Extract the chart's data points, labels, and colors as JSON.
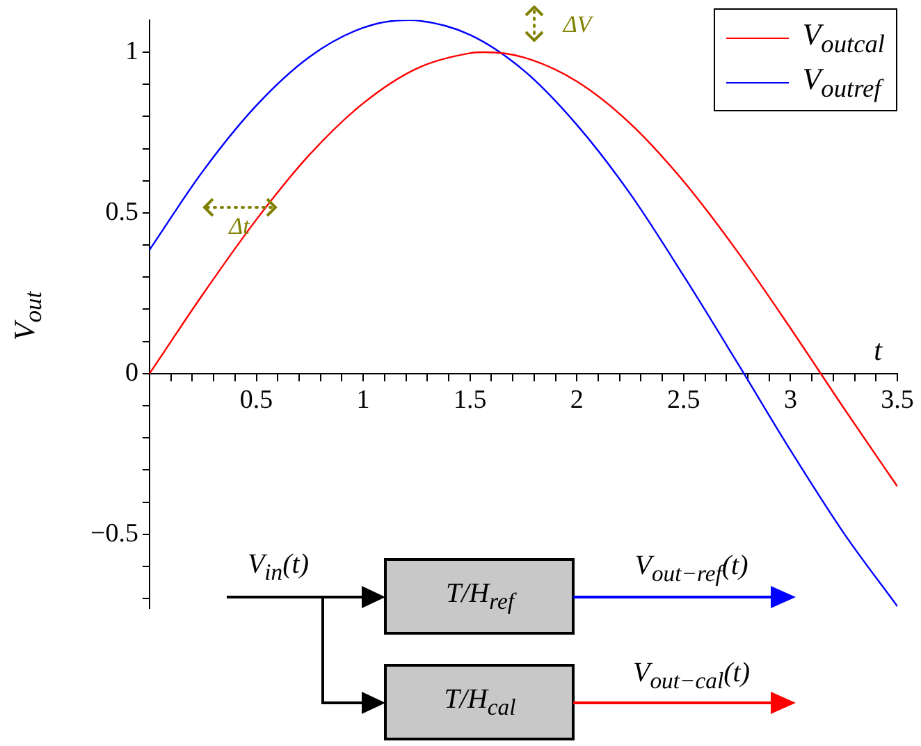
{
  "chart_data": {
    "type": "line",
    "xlabel": "t",
    "ylabel": "V$_{out}$",
    "x": [
      0,
      0.25,
      0.5,
      0.75,
      1,
      1.25,
      1.5,
      1.57,
      1.75,
      2,
      2.25,
      2.5,
      2.75,
      3,
      3.25,
      3.5
    ],
    "series": [
      {
        "name": "V$_{out}$$_{cal}$",
        "color": "#ff0000",
        "values": [
          0,
          0.247,
          0.479,
          0.682,
          0.841,
          0.949,
          0.997,
          1.0,
          0.984,
          0.909,
          0.778,
          0.598,
          0.381,
          0.141,
          -0.108,
          -0.351
        ]
      },
      {
        "name": "V$_{out}$$_{ref}$",
        "color": "#0000ff",
        "x": [
          0,
          0.25,
          0.5,
          0.75,
          1,
          1.21,
          1.25,
          1.5,
          1.75,
          2,
          2.25,
          2.5,
          2.75,
          3,
          3.25,
          3.5
        ],
        "values": [
          0.385,
          0.63,
          0.834,
          0.986,
          1.076,
          1.1,
          1.099,
          1.054,
          0.944,
          0.774,
          0.559,
          0.304,
          0.035,
          -0.239,
          -0.497,
          -0.724
        ]
      }
    ],
    "xlim": [
      0,
      3.5
    ],
    "ylim": [
      -0.73,
      1.1
    ],
    "xticks": [
      {
        "value": 0.1,
        "label": null
      },
      {
        "value": 0.2,
        "label": null
      },
      {
        "value": 0.3,
        "label": null
      },
      {
        "value": 0.4,
        "label": null
      },
      0.5,
      {
        "value": 0.6,
        "label": null
      },
      {
        "value": 0.7,
        "label": null
      },
      {
        "value": 0.8,
        "label": null
      },
      {
        "value": 0.9,
        "label": null
      },
      1,
      {
        "value": 1.1,
        "label": null
      },
      {
        "value": 1.2,
        "label": null
      },
      {
        "value": 1.3,
        "label": null
      },
      {
        "value": 1.4,
        "label": null
      },
      1.5,
      {
        "value": 1.6,
        "label": null
      },
      {
        "value": 1.7,
        "label": null
      },
      {
        "value": 1.8,
        "label": null
      },
      {
        "value": 1.9,
        "label": null
      },
      2,
      {
        "value": 2.1,
        "label": null
      },
      {
        "value": 2.2,
        "label": null
      },
      {
        "value": 2.3,
        "label": null
      },
      {
        "value": 2.4,
        "label": null
      },
      2.5,
      {
        "value": 2.6,
        "label": null
      },
      {
        "value": 2.7,
        "label": null
      },
      {
        "value": 2.8,
        "label": null
      },
      {
        "value": 2.9,
        "label": null
      },
      3,
      {
        "value": 3.1,
        "label": null
      },
      {
        "value": 3.2,
        "label": null
      },
      {
        "value": 3.3,
        "label": null
      },
      {
        "value": 3.4,
        "label": null
      },
      3.5
    ],
    "yticks": [
      {
        "value": -0.7,
        "label": null
      },
      {
        "value": -0.6,
        "label": null
      },
      -0.5,
      {
        "value": -0.4,
        "label": null
      },
      {
        "value": -0.3,
        "label": null
      },
      {
        "value": -0.2,
        "label": null
      },
      {
        "value": -0.1,
        "label": null
      },
      0,
      {
        "value": 0.1,
        "label": null
      },
      {
        "value": 0.2,
        "label": null
      },
      {
        "value": 0.3,
        "label": null
      },
      {
        "value": 0.4,
        "label": null
      },
      0.5,
      {
        "value": 0.6,
        "label": null
      },
      {
        "value": 0.7,
        "label": null
      },
      {
        "value": 0.8,
        "label": null
      },
      {
        "value": 0.9,
        "label": null
      },
      1
    ],
    "grid": false,
    "legend": "top right",
    "marker": "none",
    "line_style": "solid",
    "annotations": [
      "Δt",
      "ΔV",
      "V$_{in}$(t)",
      "T/H$_{ref}$",
      "T/H$_{cal}$",
      "V$_{out−ref}$(t)",
      "V$_{out−cal}$(t)"
    ]
  }
}
